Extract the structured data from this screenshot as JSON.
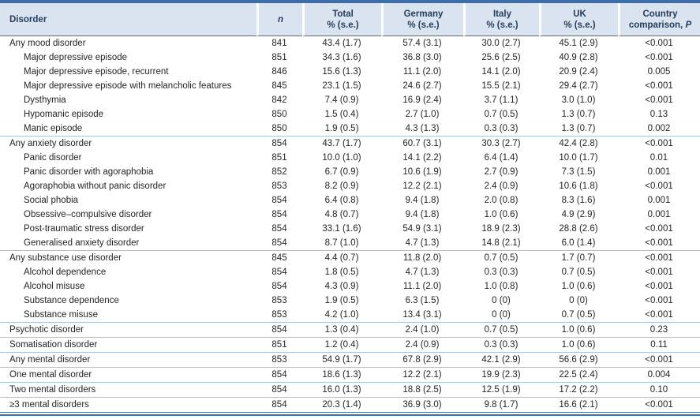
{
  "table": {
    "header": {
      "disorder": "Disorder",
      "n": "n",
      "total_line1": "Total",
      "total_line2": "% (s.e.)",
      "germany_line1": "Germany",
      "germany_line2": "% (s.e.)",
      "italy_line1": "Italy",
      "italy_line2": "% (s.e.)",
      "uk_line1": "UK",
      "uk_line2": "% (s.e.)",
      "country_line1": "Country",
      "country_line2_prefix": "comparison, ",
      "country_line2_italic": "P"
    },
    "rows": [
      {
        "label": "Any mood disorder",
        "indent": 0,
        "section": false,
        "n": "841",
        "total": "43.4 (1.7)",
        "germany": "57.4 (3.1)",
        "italy": "30.0 (2.7)",
        "uk": "45.1 (2.9)",
        "p": "<0.001"
      },
      {
        "label": "Major depressive episode",
        "indent": 1,
        "section": false,
        "n": "851",
        "total": "34.3 (1.6)",
        "germany": "36.8 (3.0)",
        "italy": "25.6 (2.5)",
        "uk": "40.9 (2.8)",
        "p": "<0.001"
      },
      {
        "label": "Major depressive episode, recurrent",
        "indent": 1,
        "section": false,
        "n": "846",
        "total": "15.6 (1.3)",
        "germany": "11.1 (2.0)",
        "italy": "14.1 (2.0)",
        "uk": "20.9 (2.4)",
        "p": "0.005"
      },
      {
        "label": "Major depressive episode with melancholic features",
        "indent": 1,
        "section": false,
        "n": "845",
        "total": "23.1 (1.5)",
        "germany": "24.6 (2.7)",
        "italy": "15.5 (2.1)",
        "uk": "29.4 (2.7)",
        "p": "<0.001"
      },
      {
        "label": "Dysthymia",
        "indent": 1,
        "section": false,
        "n": "842",
        "total": "7.4 (0.9)",
        "germany": "16.9 (2.4)",
        "italy": "3.7 (1.1)",
        "uk": "3.0 (1.0)",
        "p": "<0.001"
      },
      {
        "label": "Hypomanic episode",
        "indent": 1,
        "section": false,
        "n": "850",
        "total": "1.5 (0.4)",
        "germany": "2.7 (1.0)",
        "italy": "0.7 (0.5)",
        "uk": "1.3 (0.7)",
        "p": "0.13"
      },
      {
        "label": "Manic episode",
        "indent": 1,
        "section": false,
        "n": "850",
        "total": "1.9 (0.5)",
        "germany": "4.3 (1.3)",
        "italy": "0.3 (0.3)",
        "uk": "1.3 (0.7)",
        "p": "0.002"
      },
      {
        "label": "Any anxiety disorder",
        "indent": 0,
        "section": true,
        "n": "854",
        "total": "43.7 (1.7)",
        "germany": "60.7 (3.1)",
        "italy": "30.3 (2.7)",
        "uk": "42.4 (2.8)",
        "p": "<0.001"
      },
      {
        "label": "Panic disorder",
        "indent": 1,
        "section": false,
        "n": "851",
        "total": "10.0 (1.0)",
        "germany": "14.1 (2.2)",
        "italy": "6.4 (1.4)",
        "uk": "10.0 (1.7)",
        "p": "0.01"
      },
      {
        "label": "Panic disorder with agoraphobia",
        "indent": 1,
        "section": false,
        "n": "852",
        "total": "6.7 (0.9)",
        "germany": "10.6 (1.9)",
        "italy": "2.7 (0.9)",
        "uk": "7.3 (1.5)",
        "p": "0.001"
      },
      {
        "label": "Agoraphobia without panic disorder",
        "indent": 1,
        "section": false,
        "n": "853",
        "total": "8.2 (0.9)",
        "germany": "12.2 (2.1)",
        "italy": "2.4 (0.9)",
        "uk": "10.6 (1.8)",
        "p": "<0.001"
      },
      {
        "label": "Social phobia",
        "indent": 1,
        "section": false,
        "n": "854",
        "total": "6.4 (0.8)",
        "germany": "9.4 (1.8)",
        "italy": "2.0 (0.8)",
        "uk": "8.3 (1.6)",
        "p": "0.001"
      },
      {
        "label": "Obsessive–compulsive disorder",
        "indent": 1,
        "section": false,
        "n": "854",
        "total": "4.8 (0.7)",
        "germany": "9.4 (1.8)",
        "italy": "1.0 (0.6)",
        "uk": "4.9 (2.9)",
        "p": "0.001"
      },
      {
        "label": "Post-traumatic stress disorder",
        "indent": 1,
        "section": false,
        "n": "854",
        "total": "33.1 (1.6)",
        "germany": "54.9 (3.1)",
        "italy": "18.9 (2.3)",
        "uk": "28.8 (2.6)",
        "p": "<0.001"
      },
      {
        "label": "Generalised anxiety disorder",
        "indent": 1,
        "section": false,
        "n": "854",
        "total": "8.7 (1.0)",
        "germany": "4.7 (1.3)",
        "italy": "14.8 (2.1)",
        "uk": "6.0 (1.4)",
        "p": "<0.001"
      },
      {
        "label": "Any substance use disorder",
        "indent": 0,
        "section": true,
        "n": "845",
        "total": "4.4 (0.7)",
        "germany": "11.8 (2.0)",
        "italy": "0.7 (0.5)",
        "uk": "1.7 (0.7)",
        "p": "<0.001"
      },
      {
        "label": "Alcohol dependence",
        "indent": 1,
        "section": false,
        "n": "854",
        "total": "1.8 (0.5)",
        "germany": "4.7 (1.3)",
        "italy": "0.3 (0.3)",
        "uk": "0.7 (0.5)",
        "p": "<0.001"
      },
      {
        "label": "Alcohol misuse",
        "indent": 1,
        "section": false,
        "n": "854",
        "total": "4.3 (0.9)",
        "germany": "11.1 (2.0)",
        "italy": "1.0 (0.8)",
        "uk": "1.0 (0.6)",
        "p": "<0.001"
      },
      {
        "label": "Substance dependence",
        "indent": 1,
        "section": false,
        "n": "853",
        "total": "1.9 (0.5)",
        "germany": "6.3 (1.5)",
        "italy": "0 (0)",
        "uk": "0 (0)",
        "p": "<0.001"
      },
      {
        "label": "Substance misuse",
        "indent": 1,
        "section": false,
        "n": "853",
        "total": "4.2 (1.0)",
        "germany": "13.4 (3.1)",
        "italy": "0 (0)",
        "uk": "0.7 (0.5)",
        "p": "<0.001"
      },
      {
        "label": "Psychotic disorder",
        "indent": 0,
        "section": true,
        "n": "854",
        "total": "1.3 (0.4)",
        "germany": "2.4 (1.0)",
        "italy": "0.7 (0.5)",
        "uk": "1.0 (0.6)",
        "p": "0.23"
      },
      {
        "label": "Somatisation disorder",
        "indent": 0,
        "section": true,
        "n": "851",
        "total": "1.2 (0.4)",
        "germany": "2.4 (0.9)",
        "italy": "0.3 (0.3)",
        "uk": "1.0 (0.6)",
        "p": "0.11"
      },
      {
        "label": "Any mental disorder",
        "indent": 0,
        "section": true,
        "n": "853",
        "total": "54.9 (1.7)",
        "germany": "67.8 (2.9)",
        "italy": "42.1 (2.9)",
        "uk": "56.6 (2.9)",
        "p": "<0.001"
      },
      {
        "label": "One mental disorder",
        "indent": 0,
        "section": true,
        "n": "854",
        "total": "18.6 (1.3)",
        "germany": "12.2 (2.1)",
        "italy": "19.9 (2.3)",
        "uk": "22.5 (2.4)",
        "p": "0.004"
      },
      {
        "label": "Two mental disorders",
        "indent": 0,
        "section": true,
        "n": "854",
        "total": "16.0 (1.3)",
        "germany": "18.8 (2.5)",
        "italy": "12.5 (1.9)",
        "uk": "17.2 (2.2)",
        "p": "0.10"
      },
      {
        "label": "≥3 mental disorders",
        "indent": 0,
        "section": true,
        "n": "854",
        "total": "20.3 (1.4)",
        "germany": "36.9 (3.0)",
        "italy": "9.8 (1.7)",
        "uk": "16.6 (2.1)",
        "p": "<0.001"
      }
    ]
  }
}
